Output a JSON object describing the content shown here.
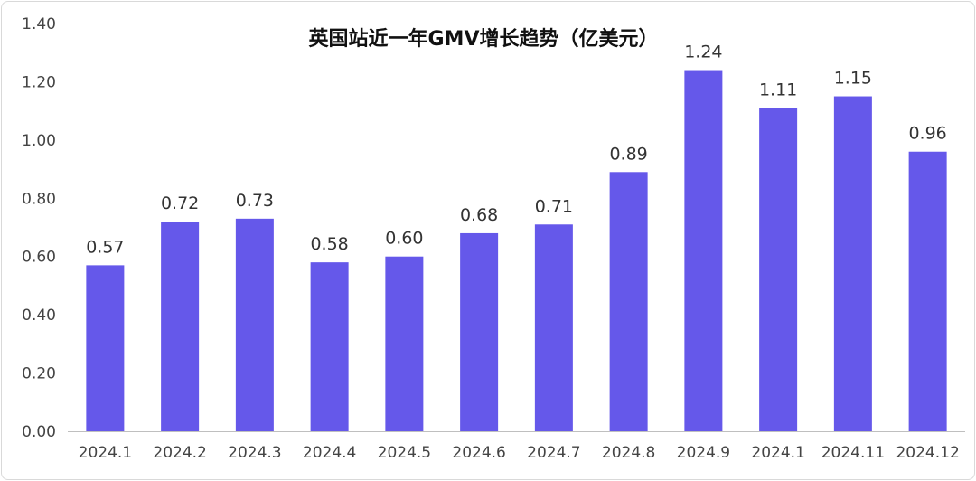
{
  "chart_data": {
    "type": "bar",
    "title": "英国站近一年GMV增长趋势（亿美元）",
    "xlabel": "",
    "ylabel": "",
    "categories": [
      "2024.1",
      "2024.2",
      "2024.3",
      "2024.4",
      "2024.5",
      "2024.6",
      "2024.7",
      "2024.8",
      "2024.9",
      "2024.1",
      "2024.11",
      "2024.12"
    ],
    "values": [
      0.57,
      0.72,
      0.73,
      0.58,
      0.6,
      0.68,
      0.71,
      0.89,
      1.24,
      1.11,
      1.15,
      0.96
    ],
    "data_labels": [
      "0.57",
      "0.72",
      "0.73",
      "0.58",
      "0.60",
      "0.68",
      "0.71",
      "0.89",
      "1.24",
      "1.11",
      "1.15",
      "0.96"
    ],
    "ylim": [
      0,
      1.4
    ],
    "yticks": [
      "0.00",
      "0.20",
      "0.40",
      "0.60",
      "0.80",
      "1.00",
      "1.20",
      "1.40"
    ],
    "grid": false,
    "legend": "none",
    "bar_color": "#6558EA"
  }
}
